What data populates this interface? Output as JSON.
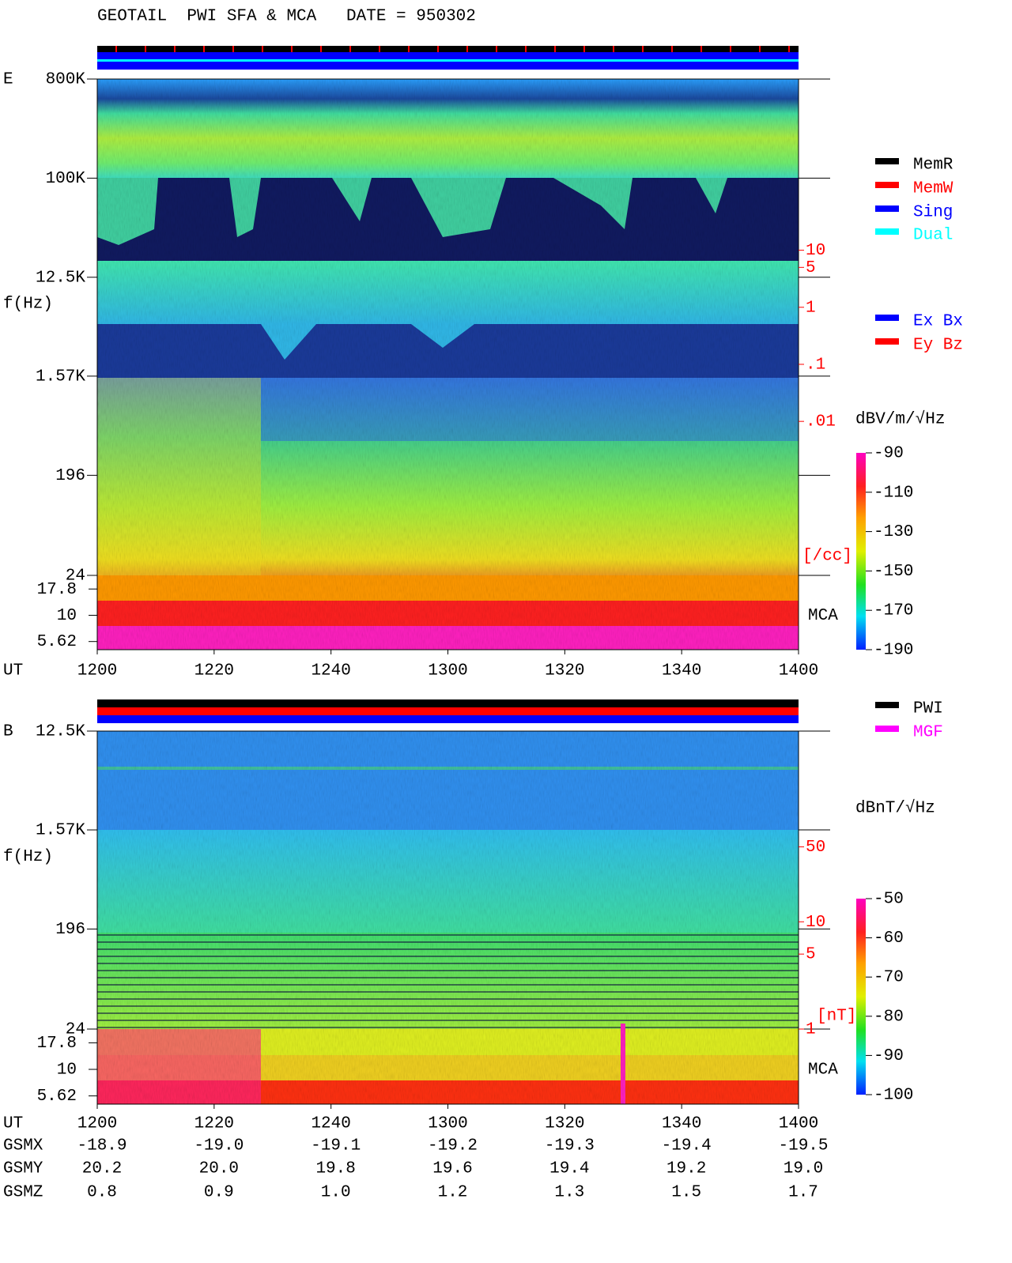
{
  "chart_data": [
    {
      "type": "spectrogram",
      "title": "GEOTAIL  PWI SFA & MCA   DATE = 950302",
      "panel_label": "E",
      "y_label": "f(Hz)",
      "x_label": "UT",
      "log_y": true,
      "ylim": [
        24,
        800000
      ],
      "yticks": [
        {
          "value": 800000,
          "label": "800K"
        },
        {
          "value": 100000,
          "label": "100K"
        },
        {
          "value": 12500,
          "label": "12.5K"
        },
        {
          "value": 1570,
          "label": "1.57K"
        },
        196,
        24
      ],
      "mca_label": "MCA",
      "mca_ylim": [
        4.7,
        24
      ],
      "mca_yticks": [
        17.8,
        10,
        5.62
      ],
      "y2_color": "#ff0000",
      "y2lim": [
        2e-05,
        10000
      ],
      "y2ticks": [
        10,
        5,
        1,
        {
          "value": 0.1,
          "label": ".1"
        },
        {
          "value": 0.01,
          "label": ".01"
        }
      ],
      "y2_label": "[/cc]",
      "xlim": [
        720,
        840
      ],
      "xticks": [
        {
          "value": 720,
          "label": "1200"
        },
        {
          "value": 740,
          "label": "1220"
        },
        {
          "value": 760,
          "label": "1240"
        },
        {
          "value": 780,
          "label": "1300"
        },
        {
          "value": 800,
          "label": "1320"
        },
        {
          "value": 820,
          "label": "1340"
        },
        {
          "value": 840,
          "label": "1400"
        }
      ],
      "colorbar": {
        "label": "dBV/m/√Hz",
        "clim": [
          -190,
          -90
        ],
        "ticks": [
          -90,
          -110,
          -130,
          -150,
          -170,
          -190
        ]
      },
      "legend": [
        {
          "name": "MemR",
          "color": "#000000"
        },
        {
          "name": "MemW",
          "color": "#ff0000"
        },
        {
          "name": "Sing",
          "color": "#0000ff"
        },
        {
          "name": "Dual",
          "color": "#00ffff"
        }
      ],
      "legend2": [
        {
          "name": "Ex Bx",
          "color": "#0000ff"
        },
        {
          "name": "Ey Bz",
          "color": "#ff0000"
        }
      ]
    },
    {
      "type": "spectrogram",
      "panel_label": "B",
      "y_label": "f(Hz)",
      "x_label": "UT",
      "log_y": true,
      "ylim": [
        24,
        12500
      ],
      "yticks": [
        {
          "value": 12500,
          "label": "12.5K"
        },
        {
          "value": 1570,
          "label": "1.57K"
        },
        196,
        24
      ],
      "mca_label": "MCA",
      "mca_ylim": [
        4.7,
        24
      ],
      "mca_yticks": [
        17.8,
        10,
        5.62
      ],
      "y2_color": "#ff0000",
      "y2lim": [
        1,
        600
      ],
      "y2ticks": [
        50,
        10,
        5,
        1
      ],
      "y2_label": "[nT]",
      "xlim": [
        720,
        840
      ],
      "xticks": [
        {
          "value": 720,
          "label": "1200"
        },
        {
          "value": 740,
          "label": "1220"
        },
        {
          "value": 760,
          "label": "1240"
        },
        {
          "value": 780,
          "label": "1300"
        },
        {
          "value": 800,
          "label": "1320"
        },
        {
          "value": 820,
          "label": "1340"
        },
        {
          "value": 840,
          "label": "1400"
        }
      ],
      "colorbar": {
        "label": "dBnT/√Hz",
        "clim": [
          -100,
          -50
        ],
        "ticks": [
          -50,
          -60,
          -70,
          -80,
          -90,
          -100
        ]
      },
      "legend": [
        {
          "name": "PWI",
          "color": "#000000"
        },
        {
          "name": "MGF",
          "color": "#ff00ff"
        }
      ],
      "orbit": [
        {
          "name": "GSMX",
          "values": [
            -18.9,
            -19,
            -19.1,
            -19.2,
            -19.3,
            -19.4,
            -19.5
          ],
          "value_labels": [
            "-18.9",
            "-19.0",
            "-19.1",
            "-19.2",
            "-19.3",
            "-19.4",
            "-19.5"
          ]
        },
        {
          "name": "GSMY",
          "values": [
            20.2,
            20,
            19.8,
            19.6,
            19.4,
            19.2,
            19
          ],
          "value_labels": [
            "20.2",
            "20.0",
            "19.8",
            "19.6",
            "19.4",
            "19.2",
            "19.0"
          ]
        },
        {
          "name": "GSMZ",
          "values": [
            0.8,
            0.9,
            1,
            1.2,
            1.3,
            1.5,
            1.7
          ],
          "value_labels": [
            "0.8",
            "0.9",
            "1.0",
            "1.2",
            "1.3",
            "1.5",
            "1.7"
          ]
        }
      ]
    }
  ]
}
